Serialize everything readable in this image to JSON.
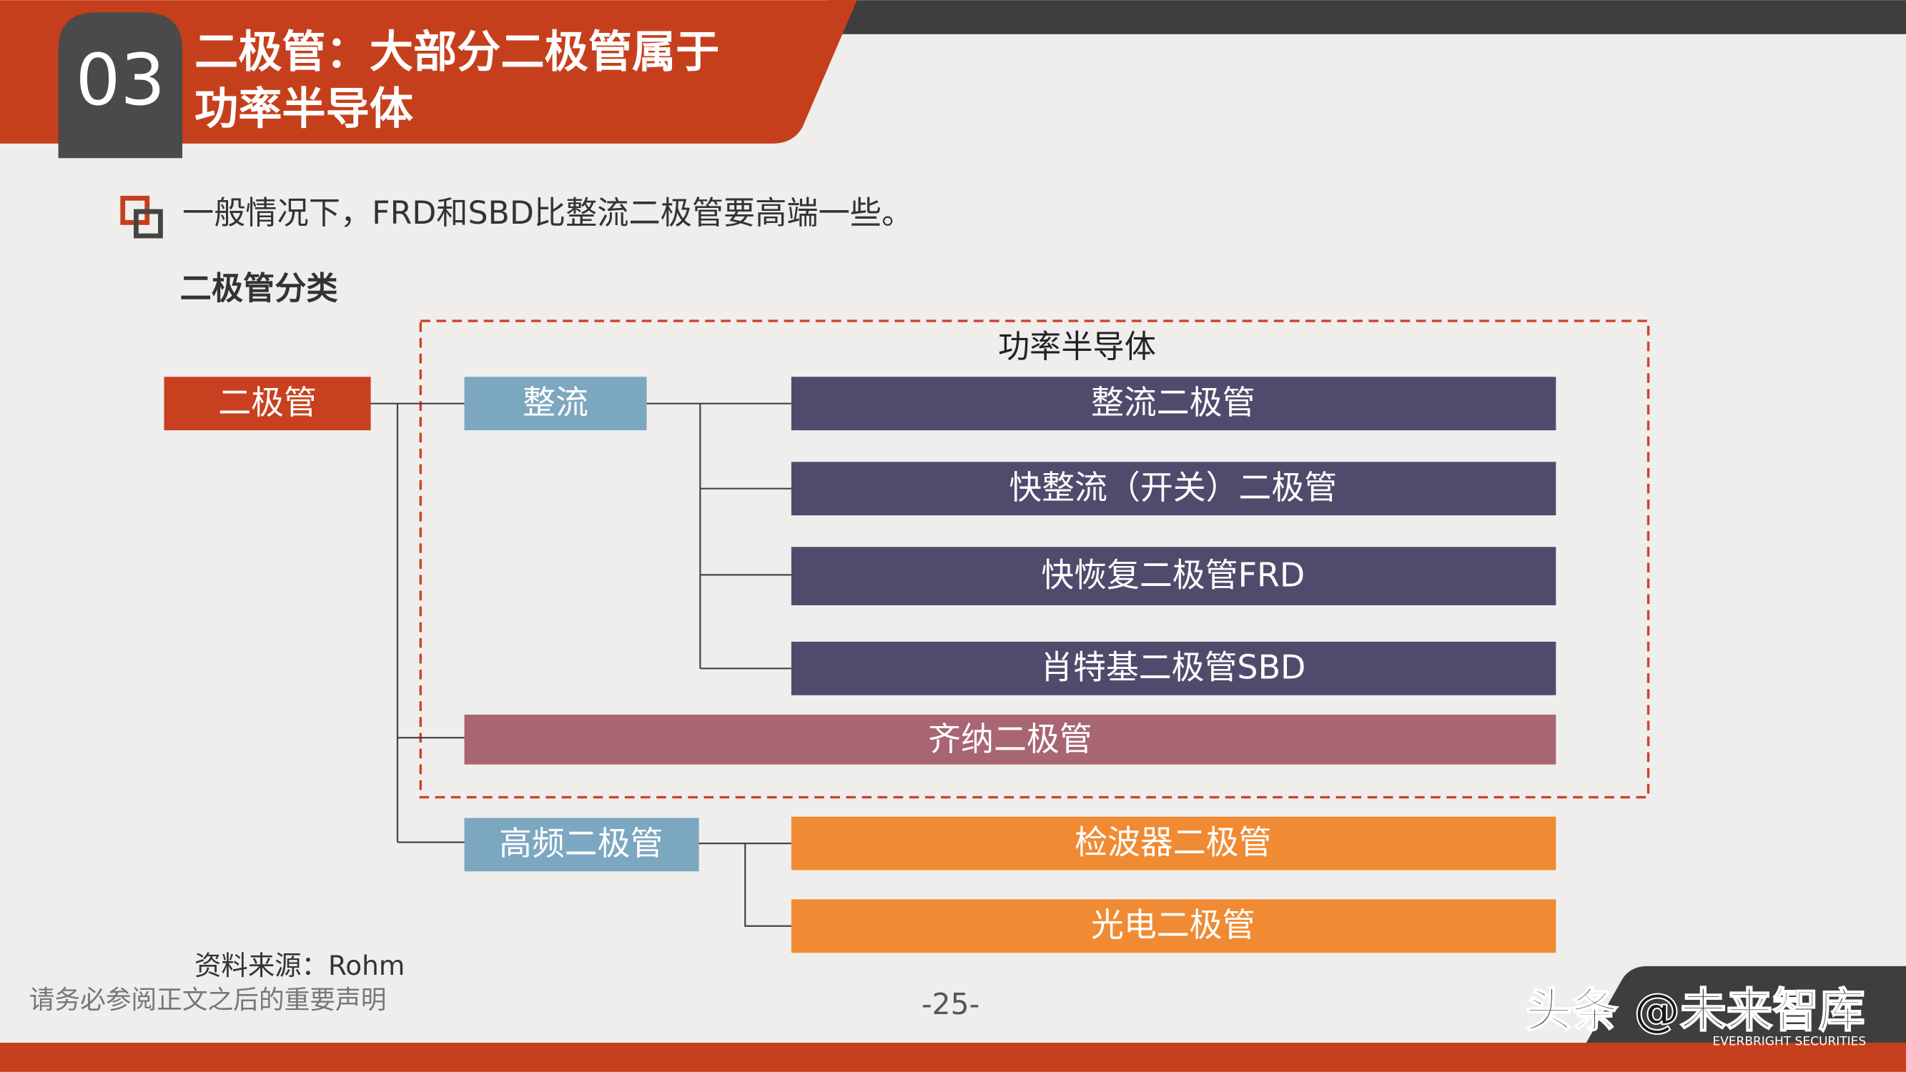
{
  "header": {
    "number": "03",
    "title": [
      "二极管：大部分二极管属于",
      "功率半导体"
    ]
  },
  "bullet": "一般情况下，FRD和SBD比整流二极管要高端一些。",
  "diagram": {
    "title": "二极管分类",
    "group_label": "功率半导体",
    "nodes": [
      {
        "label": "二极管"
      },
      {
        "label": "整流"
      },
      {
        "label": "整流二极管"
      },
      {
        "label": "快整流（开关）二极管"
      },
      {
        "label": "快恢复二极管FRD"
      },
      {
        "label": "肖特基二极管SBD"
      },
      {
        "label": "齐纳二极管"
      },
      {
        "label": "高频二极管"
      },
      {
        "label": "检波器二极管"
      },
      {
        "label": "光电二极管"
      }
    ]
  },
  "source": "资料来源：Rohm",
  "footer": {
    "disclaimer": "请务必参阅正文之后的重要声明",
    "page": "-25-",
    "watermark": "头条 @未来智库",
    "brand": "EVERBRIGHT SECURITIES"
  }
}
